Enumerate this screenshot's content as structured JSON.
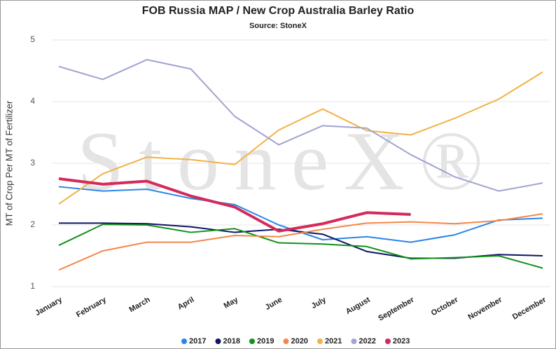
{
  "chart_data": {
    "type": "line",
    "title": "FOB Russia MAP / New Crop Australia Barley Ratio",
    "subtitle": "Source: StoneX",
    "watermark": "StoneX®",
    "y_label": "MT of Crop Per MT of Fertilizer",
    "categories": [
      "January",
      "February",
      "March",
      "April",
      "May",
      "June",
      "July",
      "August",
      "September",
      "October",
      "November",
      "December"
    ],
    "ylim": [
      1,
      5
    ],
    "yticks": [
      1,
      2,
      3,
      4,
      5
    ],
    "grid": true,
    "legend": "bottom",
    "series": [
      {
        "name": "2017",
        "color": "#2a86e6",
        "values": [
          2.62,
          2.55,
          2.58,
          2.43,
          2.33,
          2.0,
          1.76,
          1.81,
          1.72,
          1.84,
          2.08,
          2.11
        ]
      },
      {
        "name": "2018",
        "color": "#0f1466",
        "values": [
          2.03,
          2.03,
          2.02,
          1.97,
          1.88,
          1.93,
          1.85,
          1.57,
          1.46,
          1.46,
          1.52,
          1.5
        ]
      },
      {
        "name": "2019",
        "color": "#13901a",
        "values": [
          1.67,
          2.01,
          2.0,
          1.88,
          1.94,
          1.71,
          1.69,
          1.65,
          1.45,
          1.47,
          1.5,
          1.3
        ]
      },
      {
        "name": "2020",
        "color": "#f4874b",
        "values": [
          1.27,
          1.58,
          1.72,
          1.72,
          1.83,
          1.81,
          1.93,
          2.03,
          2.05,
          2.02,
          2.07,
          2.18
        ]
      },
      {
        "name": "2021",
        "color": "#f2b244",
        "values": [
          2.34,
          2.83,
          3.1,
          3.06,
          2.98,
          3.54,
          3.88,
          3.53,
          3.46,
          3.73,
          4.04,
          4.48
        ]
      },
      {
        "name": "2022",
        "color": "#a0a4d0",
        "values": [
          4.57,
          4.36,
          4.68,
          4.53,
          3.76,
          3.3,
          3.61,
          3.57,
          3.14,
          2.78,
          2.55,
          2.68
        ]
      },
      {
        "name": "2023",
        "color": "#d42a5b",
        "values": [
          2.75,
          2.66,
          2.71,
          2.47,
          2.29,
          1.9,
          2.02,
          2.2,
          2.17,
          null,
          null,
          null
        ]
      }
    ]
  }
}
